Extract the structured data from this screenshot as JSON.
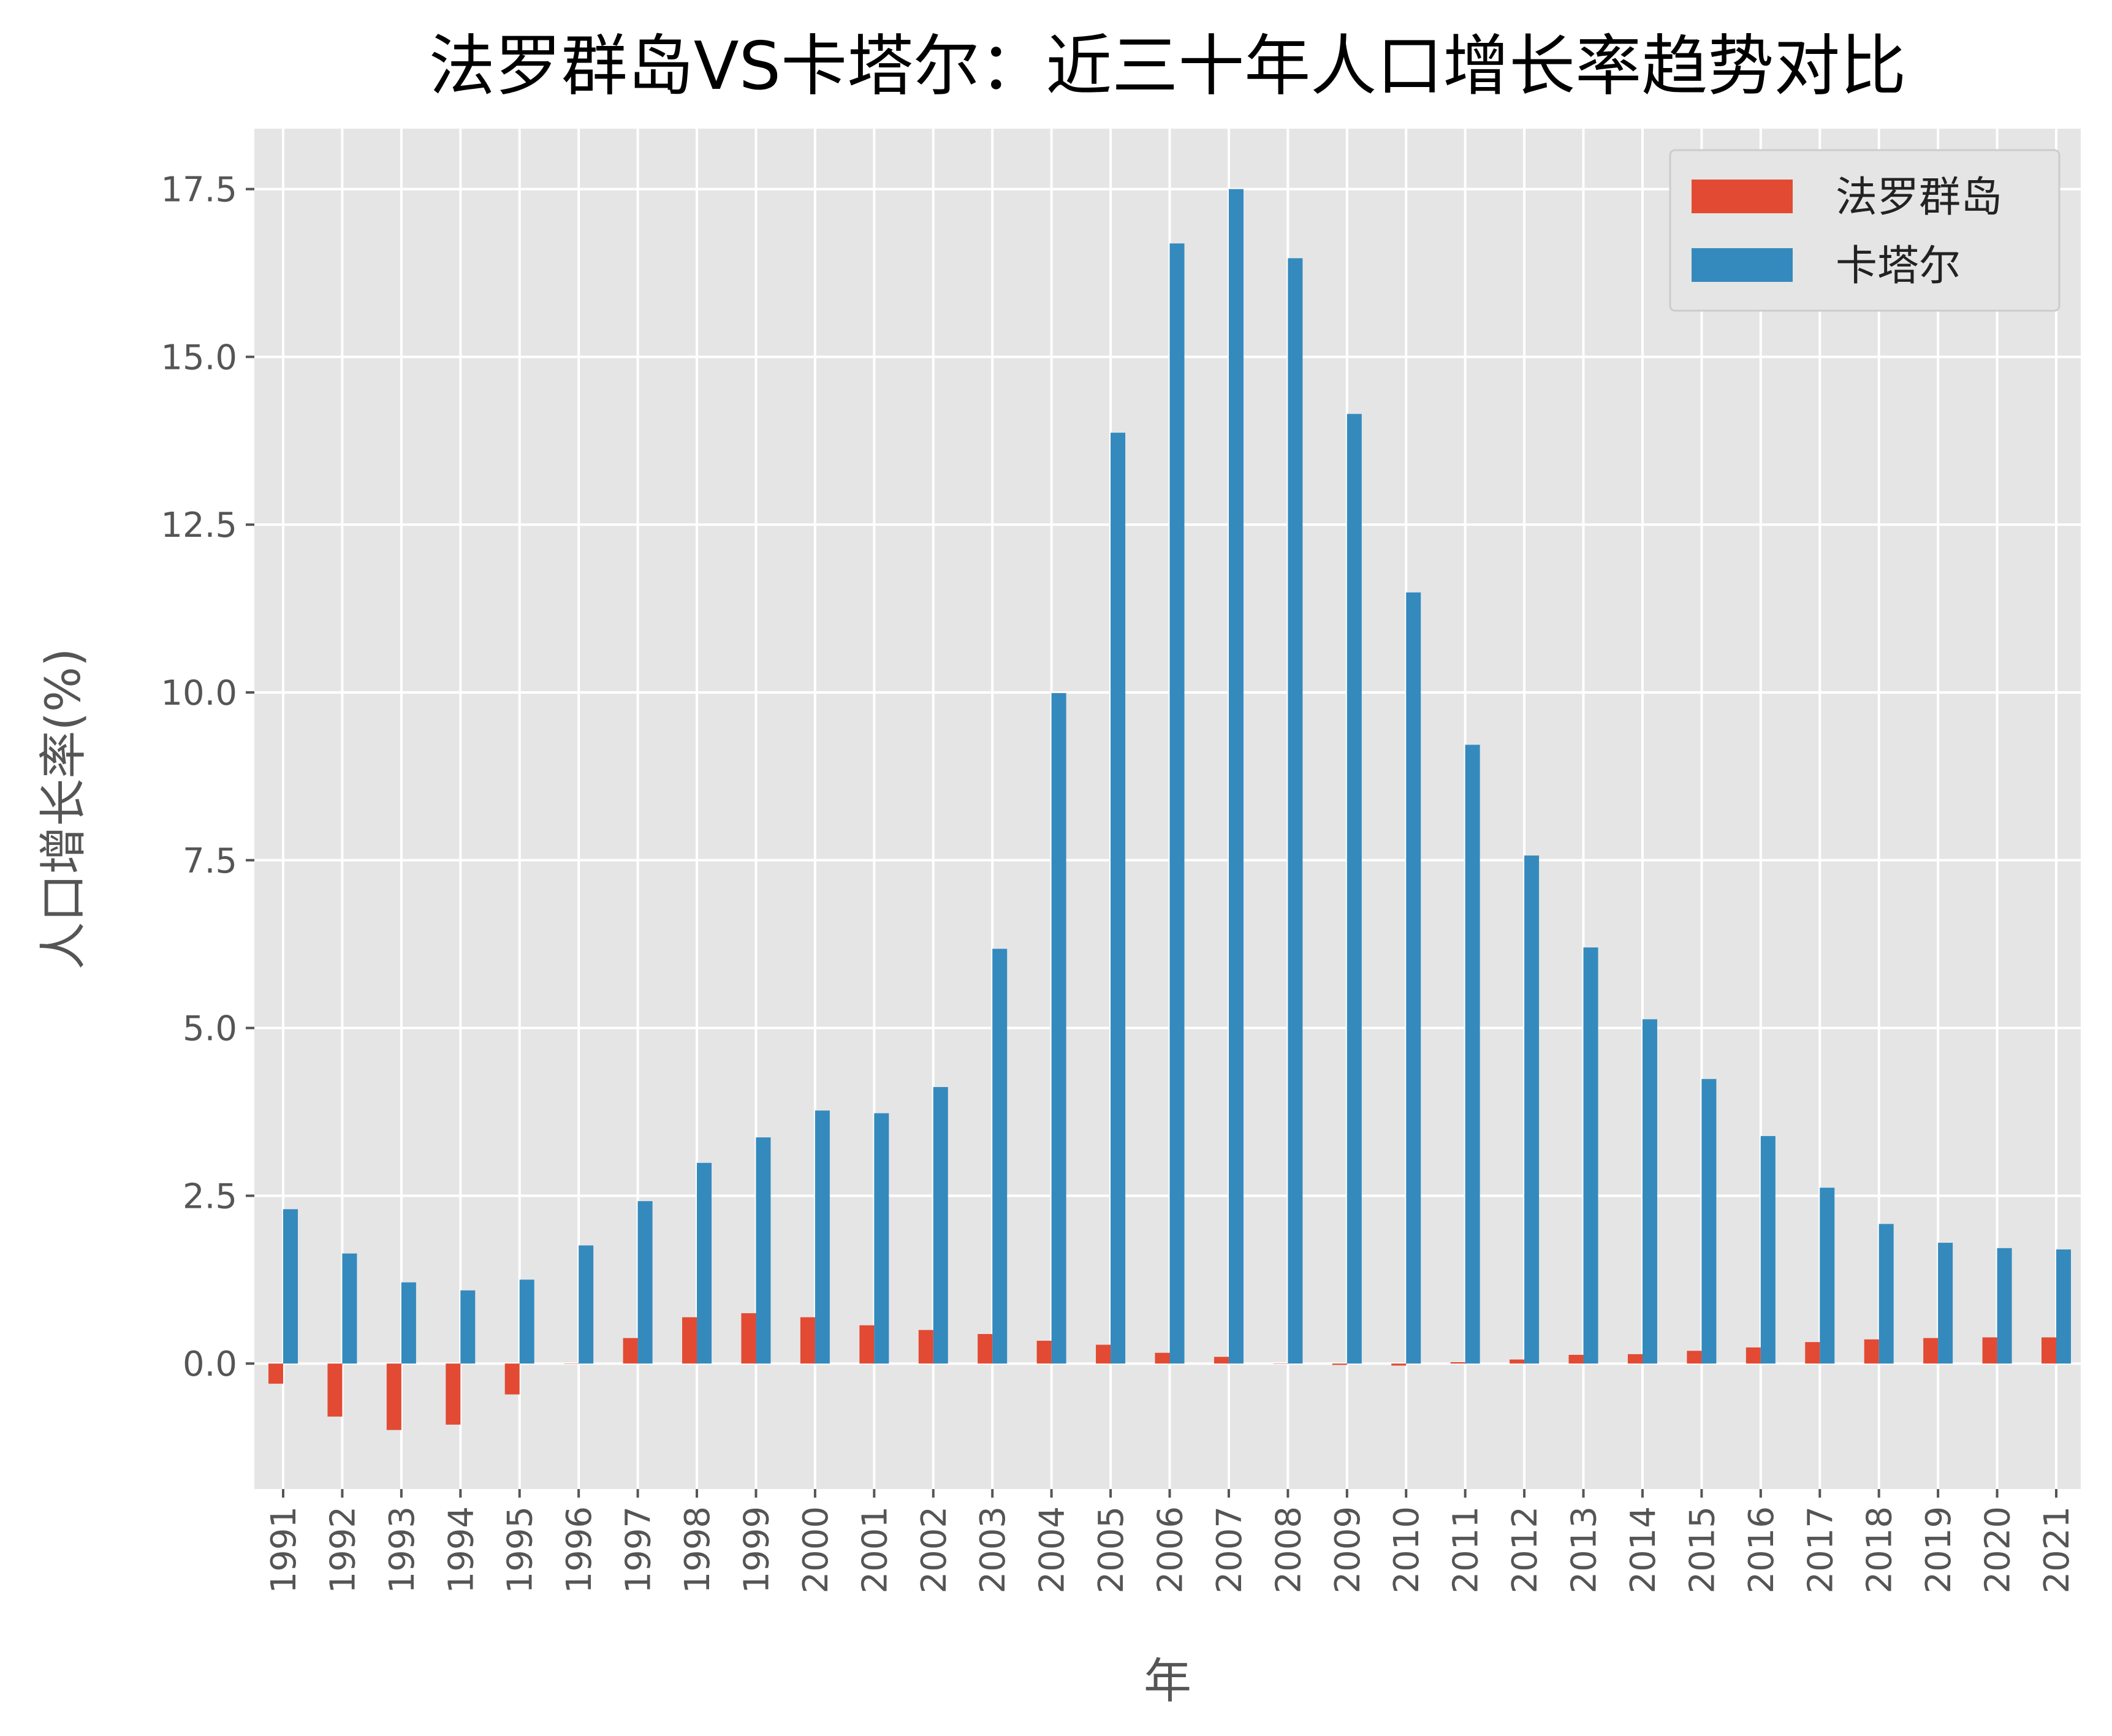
{
  "chart_data": {
    "type": "bar",
    "title": "法罗群岛VS卡塔尔：近三十年人口增长率趋势对比",
    "xlabel": "年",
    "ylabel": "人口增长率(%)",
    "ylim": [
      -1.87,
      18.4
    ],
    "yticks": [
      0.0,
      2.5,
      5.0,
      7.5,
      10.0,
      12.5,
      15.0,
      17.5
    ],
    "ytick_labels": [
      "0.0",
      "2.5",
      "5.0",
      "7.5",
      "10.0",
      "12.5",
      "15.0",
      "17.5"
    ],
    "grid": true,
    "legend_position": "top-right",
    "categories": [
      "1991",
      "1992",
      "1993",
      "1994",
      "1995",
      "1996",
      "1997",
      "1998",
      "1999",
      "2000",
      "2001",
      "2002",
      "2003",
      "2004",
      "2005",
      "2006",
      "2007",
      "2008",
      "2009",
      "2010",
      "2011",
      "2012",
      "2013",
      "2014",
      "2015",
      "2016",
      "2017",
      "2018",
      "2019",
      "2020",
      "2021"
    ],
    "series": [
      {
        "name": "法罗群岛",
        "color": "#E24A33",
        "values": [
          -0.3,
          -0.79,
          -0.99,
          -0.91,
          -0.46,
          0.0,
          0.38,
          0.69,
          0.75,
          0.69,
          0.57,
          0.5,
          0.44,
          0.34,
          0.28,
          0.16,
          0.1,
          0.0,
          -0.02,
          -0.03,
          0.02,
          0.06,
          0.13,
          0.14,
          0.19,
          0.24,
          0.32,
          0.36,
          0.38,
          0.39,
          0.39
        ]
      },
      {
        "name": "卡塔尔",
        "color": "#348ABD",
        "values": [
          2.3,
          1.64,
          1.21,
          1.09,
          1.25,
          1.76,
          2.42,
          2.99,
          3.37,
          3.77,
          3.73,
          4.12,
          6.18,
          9.99,
          13.87,
          16.69,
          17.5,
          16.47,
          14.15,
          11.49,
          9.22,
          7.57,
          6.2,
          5.13,
          4.24,
          3.39,
          2.62,
          2.08,
          1.8,
          1.72,
          1.7
        ]
      }
    ],
    "background": "#E5E5E5"
  }
}
